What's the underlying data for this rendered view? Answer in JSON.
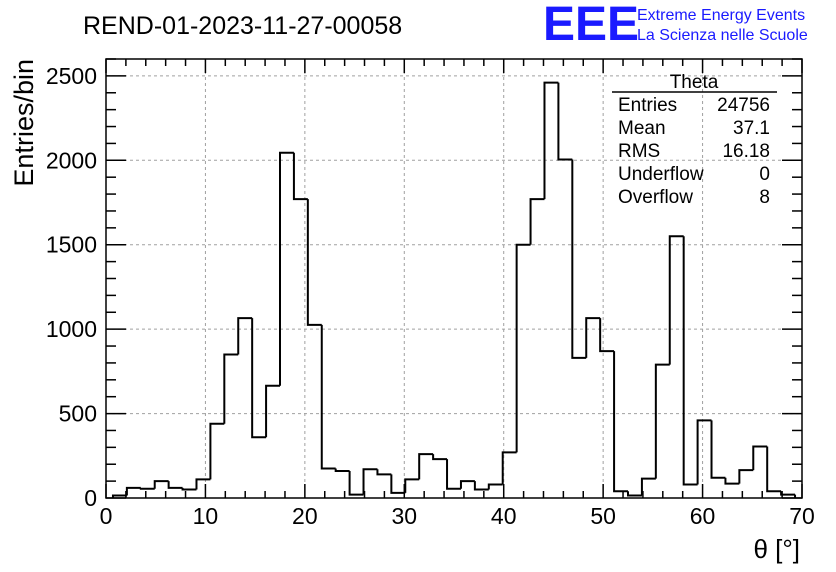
{
  "chart_data": {
    "type": "bar",
    "title": "REND-01-2023-11-27-00058",
    "xlabel": "θ [°]",
    "ylabel": "Entries/bin",
    "xlim": [
      0,
      70
    ],
    "ylim": [
      0,
      2600
    ],
    "grid": true,
    "x_ticks": [
      0,
      10,
      20,
      30,
      40,
      50,
      60,
      70
    ],
    "y_ticks": [
      0,
      500,
      1000,
      1500,
      2000,
      2500
    ],
    "bin_width": 1.4,
    "bin_edges_start": 0.7,
    "values": [
      15,
      60,
      55,
      100,
      60,
      50,
      110,
      440,
      850,
      1065,
      360,
      665,
      2045,
      1770,
      1025,
      175,
      160,
      20,
      170,
      140,
      30,
      110,
      260,
      230,
      55,
      100,
      50,
      80,
      270,
      1500,
      1770,
      2460,
      2005,
      830,
      1065,
      870,
      40,
      15,
      115,
      790,
      1550,
      80,
      460,
      120,
      85,
      165,
      305,
      40,
      20
    ]
  },
  "stats_box": {
    "title": "Theta",
    "rows": [
      {
        "label": "Entries",
        "value": "24756"
      },
      {
        "label": "Mean",
        "value": "37.1"
      },
      {
        "label": "RMS",
        "value": "16.18"
      },
      {
        "label": "Underflow",
        "value": "0"
      },
      {
        "label": "Overflow",
        "value": "8"
      }
    ]
  },
  "logo": {
    "mark": "EEE",
    "line1": "Extreme Energy Events",
    "line2": "La Scienza nelle Scuole",
    "color": "#1a1aff"
  }
}
